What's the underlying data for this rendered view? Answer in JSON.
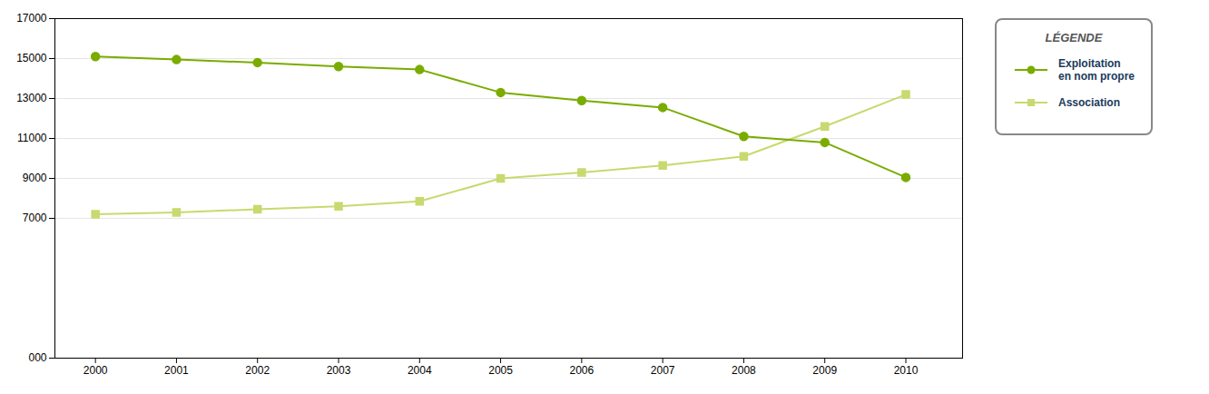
{
  "chart_data": {
    "type": "line",
    "x": [
      2000,
      2001,
      2002,
      2003,
      2004,
      2005,
      2006,
      2007,
      2008,
      2009,
      2010
    ],
    "series": [
      {
        "name": "Exploitation\nen nom propre",
        "color": "#7aac00",
        "marker": "circle",
        "values": [
          15100,
          14950,
          14800,
          14600,
          14450,
          13300,
          12900,
          12550,
          11100,
          10800,
          9050
        ]
      },
      {
        "name": "Association",
        "color": "#c8d96f",
        "marker": "square",
        "values": [
          7200,
          7300,
          7450,
          7600,
          7850,
          9000,
          9300,
          9650,
          10100,
          11600,
          13200
        ]
      }
    ],
    "xlim": [
      1999.5,
      2010.7
    ],
    "xticks": [
      2000,
      2001,
      2002,
      2003,
      2004,
      2005,
      2006,
      2007,
      2008,
      2009,
      2010
    ],
    "ylim": [
      0,
      17000
    ],
    "yticks": [
      {
        "value": 0,
        "label": "000"
      },
      7000,
      9000,
      11000,
      13000,
      15000,
      17000
    ],
    "grid": "y",
    "legend": "right",
    "legend_title": "LÉGENDE"
  }
}
